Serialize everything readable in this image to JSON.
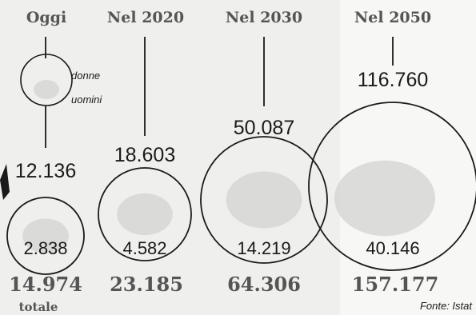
{
  "chart_data": {
    "type": "bubble",
    "title": "",
    "categories": [
      "Oggi",
      "Nel 2020",
      "Nel 2030",
      "Nel 2050"
    ],
    "series": [
      {
        "name": "donne",
        "values": [
          12136,
          18603,
          50087,
          116760
        ]
      },
      {
        "name": "uomini",
        "values": [
          2838,
          4582,
          14219,
          40146
        ]
      }
    ],
    "totals": [
      {
        "value": "14.974"
      },
      {
        "value": "23.185"
      },
      {
        "value": "64.306"
      },
      {
        "value": "157.177"
      }
    ],
    "female_labels": [
      "12.136",
      "18.603",
      "50.087",
      "116.760"
    ],
    "male_labels": [
      "2.838",
      "4.582",
      "14.219",
      "40.146"
    ],
    "legend_female": "donne",
    "legend_male": "uomini",
    "total_label": "totale",
    "source": "Fonte: Istat",
    "colors": {
      "ink": "#1a1a1a",
      "header": "#555555",
      "total": "#555555",
      "blob": "#d3d3d1",
      "background": "#efefed"
    }
  }
}
